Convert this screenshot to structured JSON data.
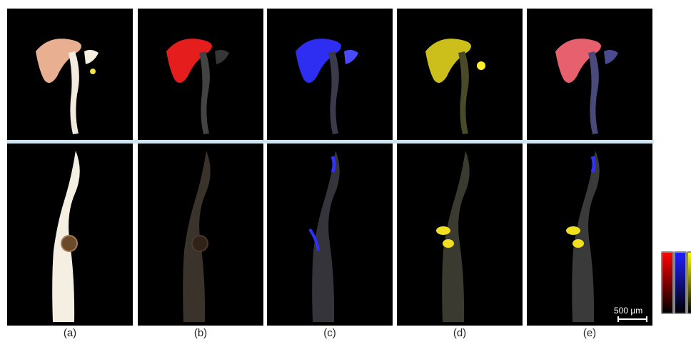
{
  "captions": [
    "(a)",
    "(b)",
    "(c)",
    "(d)",
    "(e)"
  ],
  "scale_bar_label": "500 µm",
  "panels": [
    {
      "id": "a",
      "mode": "natural",
      "top": "#e6c2a2",
      "bottom": "#f1e8d8"
    },
    {
      "id": "b",
      "mode": "red",
      "accent": "#ff2020"
    },
    {
      "id": "c",
      "mode": "blue",
      "accent": "#3030ff"
    },
    {
      "id": "d",
      "mode": "yellow",
      "accent": "#f0e020"
    },
    {
      "id": "e",
      "mode": "merge",
      "accent": "#ff6a7a"
    }
  ],
  "colorbars": [
    {
      "name": "red-colorbar",
      "color": "#ff0000"
    },
    {
      "name": "blue-colorbar",
      "color": "#2020ff"
    },
    {
      "name": "yellow-colorbar",
      "color": "#ffff00"
    }
  ]
}
